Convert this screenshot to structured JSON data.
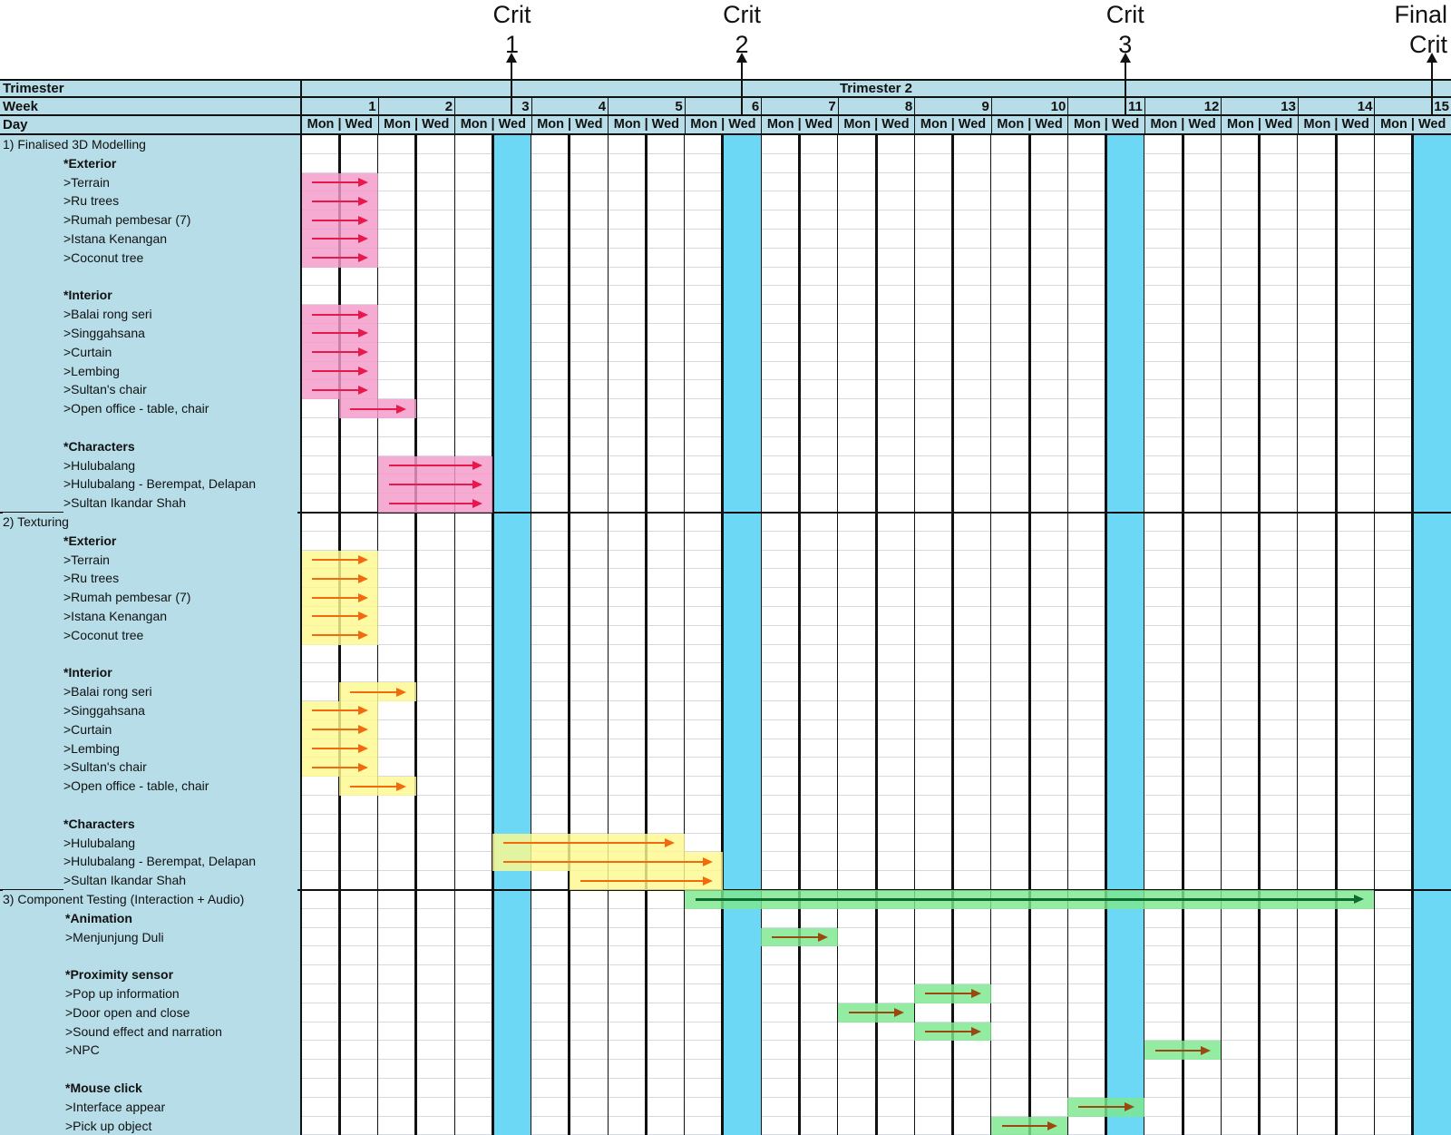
{
  "milestones": [
    {
      "label_line1": "Crit",
      "label_line2": "1",
      "week": 3,
      "day": "Wed"
    },
    {
      "label_line1": "Crit",
      "label_line2": "2",
      "week": 6,
      "day": "Wed"
    },
    {
      "label_line1": "Crit",
      "label_line2": "3",
      "week": 11,
      "day": "Wed"
    },
    {
      "label_line1": "Final",
      "label_line2": "Crit",
      "week": 15,
      "day": "Wed"
    }
  ],
  "header": {
    "trimester_label": "Trimester",
    "trimester_value": "Trimester 2",
    "week_label": "Week",
    "day_label": "Day",
    "day_text": "Mon | Wed",
    "weeks": [
      "1",
      "2",
      "3",
      "4",
      "5",
      "6",
      "7",
      "8",
      "9",
      "10",
      "11",
      "12",
      "13",
      "14",
      "15"
    ]
  },
  "colors": {
    "label_bg": "#b6dde8",
    "milestone_column": "#6cd8f5",
    "modelling_bar": "#f49ac8",
    "modelling_arrow": "#e8194a",
    "texturing_bar": "#fdf98f",
    "texturing_arrow": "#f26a0d",
    "testing_bar": "#7de88f",
    "testing_arrow": "#9a4a10",
    "testing_main_arrow": "#0d6b2e"
  },
  "rows": [
    {
      "label": "1) Finalised 3D Modelling",
      "type": "section"
    },
    {
      "label": "*Exterior",
      "type": "group"
    },
    {
      "label": ">Terrain",
      "type": "item",
      "bar": {
        "phase": "modelling",
        "start": {
          "week": 1,
          "day": "Mon"
        },
        "end": {
          "week": 1,
          "day": "Wed"
        }
      }
    },
    {
      "label": ">Ru trees",
      "type": "item",
      "bar": {
        "phase": "modelling",
        "start": {
          "week": 1,
          "day": "Mon"
        },
        "end": {
          "week": 1,
          "day": "Wed"
        }
      }
    },
    {
      "label": ">Rumah pembesar (7)",
      "type": "item",
      "bar": {
        "phase": "modelling",
        "start": {
          "week": 1,
          "day": "Mon"
        },
        "end": {
          "week": 1,
          "day": "Wed"
        }
      }
    },
    {
      "label": ">Istana Kenangan",
      "type": "item",
      "bar": {
        "phase": "modelling",
        "start": {
          "week": 1,
          "day": "Mon"
        },
        "end": {
          "week": 1,
          "day": "Wed"
        }
      }
    },
    {
      "label": ">Coconut tree",
      "type": "item",
      "bar": {
        "phase": "modelling",
        "start": {
          "week": 1,
          "day": "Mon"
        },
        "end": {
          "week": 1,
          "day": "Wed"
        }
      }
    },
    {
      "label": "",
      "type": "blank"
    },
    {
      "label": "*Interior",
      "type": "group"
    },
    {
      "label": ">Balai rong seri",
      "type": "item",
      "bar": {
        "phase": "modelling",
        "start": {
          "week": 1,
          "day": "Mon"
        },
        "end": {
          "week": 1,
          "day": "Wed"
        }
      }
    },
    {
      "label": ">Singgahsana",
      "type": "item",
      "bar": {
        "phase": "modelling",
        "start": {
          "week": 1,
          "day": "Mon"
        },
        "end": {
          "week": 1,
          "day": "Wed"
        }
      }
    },
    {
      "label": ">Curtain",
      "type": "item",
      "bar": {
        "phase": "modelling",
        "start": {
          "week": 1,
          "day": "Mon"
        },
        "end": {
          "week": 1,
          "day": "Wed"
        }
      }
    },
    {
      "label": ">Lembing",
      "type": "item",
      "bar": {
        "phase": "modelling",
        "start": {
          "week": 1,
          "day": "Mon"
        },
        "end": {
          "week": 1,
          "day": "Wed"
        }
      }
    },
    {
      "label": ">Sultan's chair",
      "type": "item",
      "bar": {
        "phase": "modelling",
        "start": {
          "week": 1,
          "day": "Mon"
        },
        "end": {
          "week": 1,
          "day": "Wed"
        }
      }
    },
    {
      "label": ">Open office - table, chair",
      "type": "item",
      "bar": {
        "phase": "modelling",
        "start": {
          "week": 1,
          "day": "Wed"
        },
        "end": {
          "week": 2,
          "day": "Mon"
        }
      }
    },
    {
      "label": "",
      "type": "blank"
    },
    {
      "label": "*Characters",
      "type": "group"
    },
    {
      "label": ">Hulubalang",
      "type": "item",
      "bar": {
        "phase": "modelling",
        "start": {
          "week": 2,
          "day": "Mon"
        },
        "end": {
          "week": 3,
          "day": "Mon"
        }
      }
    },
    {
      "label": ">Hulubalang - Berempat, Delapan",
      "type": "item",
      "bar": {
        "phase": "modelling",
        "start": {
          "week": 2,
          "day": "Mon"
        },
        "end": {
          "week": 3,
          "day": "Mon"
        }
      }
    },
    {
      "label": ">Sultan Ikandar Shah",
      "type": "item",
      "bar": {
        "phase": "modelling",
        "start": {
          "week": 2,
          "day": "Mon"
        },
        "end": {
          "week": 3,
          "day": "Mon"
        }
      }
    },
    {
      "label": "2) Texturing",
      "type": "section"
    },
    {
      "label": "*Exterior",
      "type": "group"
    },
    {
      "label": ">Terrain",
      "type": "item",
      "bar": {
        "phase": "texturing",
        "start": {
          "week": 1,
          "day": "Mon"
        },
        "end": {
          "week": 1,
          "day": "Wed"
        }
      }
    },
    {
      "label": ">Ru trees",
      "type": "item",
      "bar": {
        "phase": "texturing",
        "start": {
          "week": 1,
          "day": "Mon"
        },
        "end": {
          "week": 1,
          "day": "Wed"
        }
      }
    },
    {
      "label": ">Rumah pembesar (7)",
      "type": "item",
      "bar": {
        "phase": "texturing",
        "start": {
          "week": 1,
          "day": "Mon"
        },
        "end": {
          "week": 1,
          "day": "Wed"
        }
      }
    },
    {
      "label": ">Istana Kenangan",
      "type": "item",
      "bar": {
        "phase": "texturing",
        "start": {
          "week": 1,
          "day": "Mon"
        },
        "end": {
          "week": 1,
          "day": "Wed"
        }
      }
    },
    {
      "label": ">Coconut tree",
      "type": "item",
      "bar": {
        "phase": "texturing",
        "start": {
          "week": 1,
          "day": "Mon"
        },
        "end": {
          "week": 1,
          "day": "Wed"
        }
      }
    },
    {
      "label": "",
      "type": "blank"
    },
    {
      "label": "*Interior",
      "type": "group"
    },
    {
      "label": ">Balai rong seri",
      "type": "item",
      "bar": {
        "phase": "texturing",
        "start": {
          "week": 1,
          "day": "Wed"
        },
        "end": {
          "week": 2,
          "day": "Mon"
        }
      }
    },
    {
      "label": ">Singgahsana",
      "type": "item",
      "bar": {
        "phase": "texturing",
        "start": {
          "week": 1,
          "day": "Mon"
        },
        "end": {
          "week": 1,
          "day": "Wed"
        }
      }
    },
    {
      "label": ">Curtain",
      "type": "item",
      "bar": {
        "phase": "texturing",
        "start": {
          "week": 1,
          "day": "Mon"
        },
        "end": {
          "week": 1,
          "day": "Wed"
        }
      }
    },
    {
      "label": ">Lembing",
      "type": "item",
      "bar": {
        "phase": "texturing",
        "start": {
          "week": 1,
          "day": "Mon"
        },
        "end": {
          "week": 1,
          "day": "Wed"
        }
      }
    },
    {
      "label": ">Sultan's chair",
      "type": "item",
      "bar": {
        "phase": "texturing",
        "start": {
          "week": 1,
          "day": "Mon"
        },
        "end": {
          "week": 1,
          "day": "Wed"
        }
      }
    },
    {
      "label": ">Open office - table, chair",
      "type": "item",
      "bar": {
        "phase": "texturing",
        "start": {
          "week": 1,
          "day": "Wed"
        },
        "end": {
          "week": 2,
          "day": "Mon"
        }
      }
    },
    {
      "label": "",
      "type": "blank"
    },
    {
      "label": "*Characters",
      "type": "group"
    },
    {
      "label": ">Hulubalang",
      "type": "item",
      "bar": {
        "phase": "texturing",
        "start": {
          "week": 3,
          "day": "Wed"
        },
        "end": {
          "week": 5,
          "day": "Wed"
        }
      }
    },
    {
      "label": ">Hulubalang - Berempat, Delapan",
      "type": "item",
      "bar": {
        "phase": "texturing",
        "start": {
          "week": 3,
          "day": "Wed"
        },
        "end": {
          "week": 6,
          "day": "Mon"
        }
      }
    },
    {
      "label": ">Sultan Ikandar Shah",
      "type": "item",
      "bar": {
        "phase": "texturing",
        "start": {
          "week": 4,
          "day": "Wed"
        },
        "end": {
          "week": 6,
          "day": "Mon"
        }
      }
    },
    {
      "label": "3) Component Testing (Interaction + Audio)",
      "type": "section",
      "bar": {
        "phase": "testing_main",
        "start": {
          "week": 6,
          "day": "Mon"
        },
        "end": {
          "week": 14,
          "day": "Wed"
        }
      }
    },
    {
      "label": "*Animation",
      "type": "group"
    },
    {
      "label": ">Menjunjung Duli",
      "type": "item",
      "bar": {
        "phase": "testing",
        "start": {
          "week": 7,
          "day": "Mon"
        },
        "end": {
          "week": 7,
          "day": "Wed"
        }
      }
    },
    {
      "label": "",
      "type": "blank"
    },
    {
      "label": "*Proximity sensor",
      "type": "group"
    },
    {
      "label": ">Pop up information",
      "type": "item",
      "bar": {
        "phase": "testing",
        "start": {
          "week": 9,
          "day": "Mon"
        },
        "end": {
          "week": 9,
          "day": "Wed"
        }
      }
    },
    {
      "label": ">Door open and close",
      "type": "item",
      "bar": {
        "phase": "testing",
        "start": {
          "week": 8,
          "day": "Mon"
        },
        "end": {
          "week": 8,
          "day": "Wed"
        }
      }
    },
    {
      "label": ">Sound effect and narration",
      "type": "item",
      "bar": {
        "phase": "testing",
        "start": {
          "week": 9,
          "day": "Mon"
        },
        "end": {
          "week": 9,
          "day": "Wed"
        }
      }
    },
    {
      "label": ">NPC",
      "type": "item",
      "bar": {
        "phase": "testing",
        "start": {
          "week": 12,
          "day": "Mon"
        },
        "end": {
          "week": 12,
          "day": "Wed"
        }
      }
    },
    {
      "label": "",
      "type": "blank"
    },
    {
      "label": "*Mouse click",
      "type": "group"
    },
    {
      "label": ">Interface appear",
      "type": "item",
      "bar": {
        "phase": "testing",
        "start": {
          "week": 11,
          "day": "Mon"
        },
        "end": {
          "week": 11,
          "day": "Wed"
        }
      }
    },
    {
      "label": ">Pick up object",
      "type": "item",
      "bar": {
        "phase": "testing",
        "start": {
          "week": 10,
          "day": "Mon"
        },
        "end": {
          "week": 10,
          "day": "Wed"
        }
      }
    }
  ]
}
